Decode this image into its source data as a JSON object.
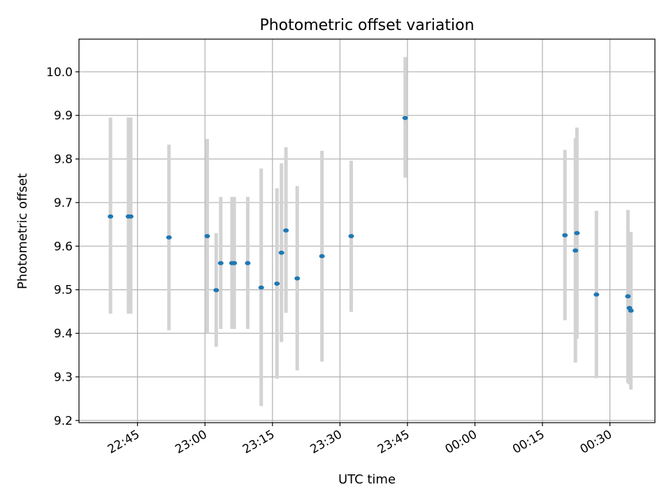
{
  "chart_data": {
    "type": "scatter",
    "title": "Photometric offset variation",
    "xlabel": "UTC time",
    "ylabel": "Photometric offset",
    "x_axis_kind": "time",
    "xlim": [
      "22:32",
      "00:40"
    ],
    "ylim": [
      9.195,
      10.075
    ],
    "grid": true,
    "x_ticks": [
      "22:45",
      "23:00",
      "23:15",
      "23:30",
      "23:45",
      "00:00",
      "00:15",
      "00:30"
    ],
    "y_ticks": [
      "9.2",
      "9.3",
      "9.4",
      "9.5",
      "9.6",
      "9.7",
      "9.8",
      "9.9",
      "10.0"
    ],
    "colors": {
      "point": "#1f77b4",
      "errorbar": "#d3d3d3",
      "grid": "#b0b0b0"
    },
    "points": [
      {
        "x": "22:39:00",
        "y": 9.668,
        "err_low": 9.445,
        "err_high": 9.895
      },
      {
        "x": "22:43:00",
        "y": 9.668,
        "err_low": 9.445,
        "err_high": 9.895
      },
      {
        "x": "22:43:30",
        "y": 9.668,
        "err_low": 9.445,
        "err_high": 9.895
      },
      {
        "x": "22:52:00",
        "y": 9.62,
        "err_low": 9.407,
        "err_high": 9.833
      },
      {
        "x": "23:00:30",
        "y": 9.623,
        "err_low": 9.4,
        "err_high": 9.846
      },
      {
        "x": "23:02:30",
        "y": 9.499,
        "err_low": 9.369,
        "err_high": 9.63
      },
      {
        "x": "23:03:30",
        "y": 9.561,
        "err_low": 9.41,
        "err_high": 9.713
      },
      {
        "x": "23:06:00",
        "y": 9.561,
        "err_low": 9.41,
        "err_high": 9.713
      },
      {
        "x": "23:06:30",
        "y": 9.561,
        "err_low": 9.41,
        "err_high": 9.713
      },
      {
        "x": "23:09:30",
        "y": 9.561,
        "err_low": 9.41,
        "err_high": 9.713
      },
      {
        "x": "23:12:30",
        "y": 9.505,
        "err_low": 9.233,
        "err_high": 9.778
      },
      {
        "x": "23:16:00",
        "y": 9.514,
        "err_low": 9.296,
        "err_high": 9.733
      },
      {
        "x": "23:17:00",
        "y": 9.585,
        "err_low": 9.38,
        "err_high": 9.79
      },
      {
        "x": "23:18:00",
        "y": 9.636,
        "err_low": 9.447,
        "err_high": 9.827
      },
      {
        "x": "23:20:30",
        "y": 9.526,
        "err_low": 9.315,
        "err_high": 9.738
      },
      {
        "x": "23:26:00",
        "y": 9.577,
        "err_low": 9.335,
        "err_high": 9.819
      },
      {
        "x": "23:32:30",
        "y": 9.623,
        "err_low": 9.449,
        "err_high": 9.796
      },
      {
        "x": "23:44:30",
        "y": 9.894,
        "err_low": 9.757,
        "err_high": 10.034
      },
      {
        "x": "00:20:00",
        "y": 9.625,
        "err_low": 9.43,
        "err_high": 9.821
      },
      {
        "x": "00:22:20",
        "y": 9.59,
        "err_low": 9.333,
        "err_high": 9.848
      },
      {
        "x": "00:22:40",
        "y": 9.63,
        "err_low": 9.388,
        "err_high": 9.872
      },
      {
        "x": "00:27:00",
        "y": 9.489,
        "err_low": 9.297,
        "err_high": 9.681
      },
      {
        "x": "00:34:00",
        "y": 9.485,
        "err_low": 9.286,
        "err_high": 9.683
      },
      {
        "x": "00:34:20",
        "y": 9.458,
        "err_low": 9.283,
        "err_high": 9.633
      },
      {
        "x": "00:34:40",
        "y": 9.452,
        "err_low": 9.271,
        "err_high": 9.632
      }
    ]
  }
}
